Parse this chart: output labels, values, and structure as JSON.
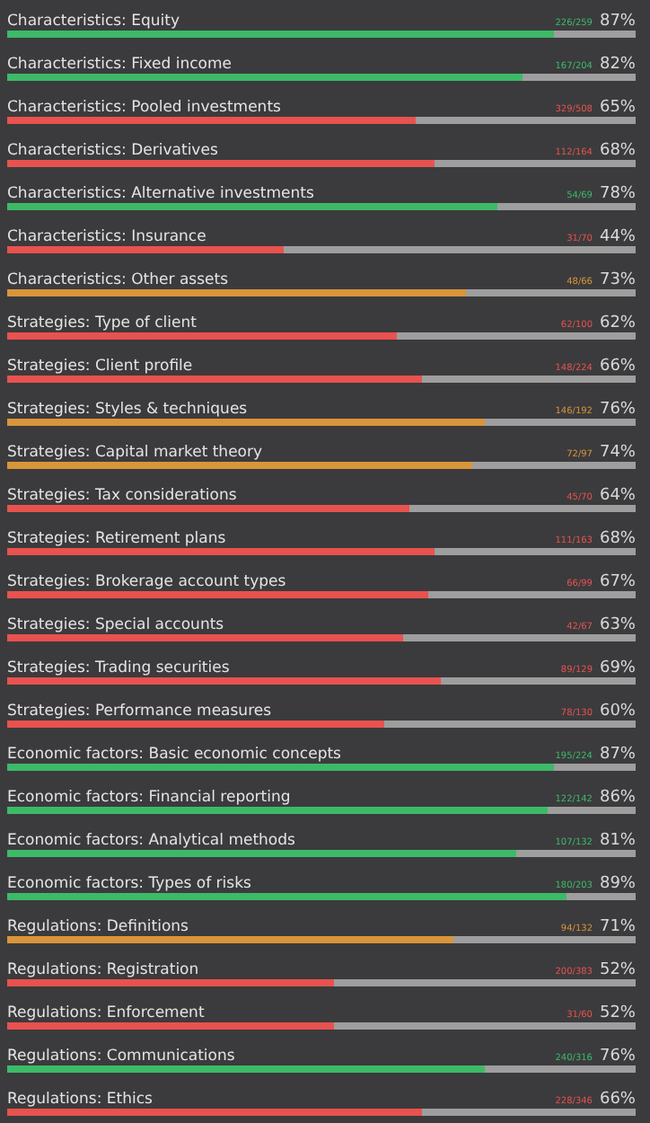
{
  "chart_data": {
    "type": "bar",
    "orientation": "horizontal",
    "xlim": [
      0,
      100
    ],
    "categories": [
      "Characteristics: Equity",
      "Characteristics: Fixed income",
      "Characteristics: Pooled investments",
      "Characteristics: Derivatives",
      "Characteristics: Alternative investments",
      "Characteristics: Insurance",
      "Characteristics: Other assets",
      "Strategies: Type of client",
      "Strategies: Client profile",
      "Strategies: Styles & techniques",
      "Strategies: Capital market theory",
      "Strategies: Tax considerations",
      "Strategies: Retirement plans",
      "Strategies: Brokerage account types",
      "Strategies: Special accounts",
      "Strategies: Trading securities",
      "Strategies: Performance measures",
      "Economic factors: Basic economic concepts",
      "Economic factors: Financial reporting",
      "Economic factors: Analytical methods",
      "Economic factors: Types of risks",
      "Regulations: Definitions",
      "Regulations: Registration",
      "Regulations: Enforcement",
      "Regulations: Communications",
      "Regulations: Ethics"
    ],
    "values": [
      87,
      82,
      65,
      68,
      78,
      44,
      73,
      62,
      66,
      76,
      74,
      64,
      68,
      67,
      63,
      69,
      60,
      87,
      86,
      81,
      89,
      71,
      52,
      52,
      76,
      66
    ],
    "value_labels": [
      "87%",
      "82%",
      "65%",
      "68%",
      "78%",
      "44%",
      "73%",
      "62%",
      "66%",
      "76%",
      "74%",
      "64%",
      "68%",
      "67%",
      "63%",
      "69%",
      "60%",
      "87%",
      "86%",
      "81%",
      "89%",
      "71%",
      "52%",
      "52%",
      "76%",
      "66%"
    ],
    "colors": [
      "#3dba68",
      "#3dba68",
      "#e8524f",
      "#e8524f",
      "#3dba68",
      "#e8524f",
      "#d9953a",
      "#e8524f",
      "#e8524f",
      "#d9953a",
      "#d9953a",
      "#e8524f",
      "#e8524f",
      "#e8524f",
      "#e8524f",
      "#e8524f",
      "#e8524f",
      "#3dba68",
      "#3dba68",
      "#3dba68",
      "#3dba68",
      "#d9953a",
      "#e8524f",
      "#e8524f",
      "#3dba68",
      "#e8524f"
    ],
    "annotations": [
      "226/259",
      "167/204",
      "329/508",
      "112/164",
      "54/69",
      "31/70",
      "48/66",
      "62/100",
      "148/224",
      "146/192",
      "72/97",
      "45/70",
      "111/163",
      "66/99",
      "42/67",
      "89/129",
      "78/130",
      "195/224",
      "122/142",
      "107/132",
      "180/203",
      "94/132",
      "200/383",
      "31/60",
      "240/316",
      "228/346"
    ]
  }
}
